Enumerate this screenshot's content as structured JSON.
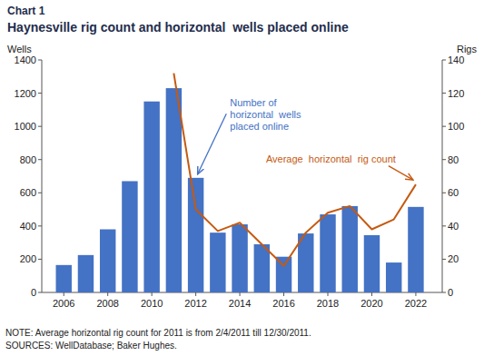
{
  "chart_data": {
    "type": "bar",
    "title": "Chart 1",
    "subtitle": "Haynesville rig count and horizontal  wells placed online",
    "x": [
      2006,
      2007,
      2008,
      2009,
      2010,
      2011,
      2012,
      2013,
      2014,
      2015,
      2016,
      2017,
      2018,
      2019,
      2020,
      2021,
      2022
    ],
    "series": [
      {
        "type": "bar",
        "color": "#4472C4",
        "values": [
          165,
          225,
          380,
          670,
          1150,
          1230,
          690,
          360,
          410,
          290,
          215,
          355,
          470,
          520,
          345,
          180,
          515
        ]
      },
      {
        "type": "line",
        "axis": "y2",
        "color": "#C55A11",
        "values": [
          null,
          null,
          null,
          null,
          null,
          132,
          50,
          37,
          42,
          29,
          16,
          36,
          48,
          52,
          38,
          44,
          65
        ]
      }
    ],
    "xlim": [
      2005,
      2023.2
    ],
    "xticks": [
      2006,
      2008,
      2010,
      2012,
      2014,
      2016,
      2018,
      2020,
      2022
    ],
    "ylabel": "Wells",
    "ylim": [
      0,
      1400
    ],
    "yticks": [
      0,
      200,
      400,
      600,
      800,
      1000,
      1200,
      1400
    ],
    "y2label": "Rigs",
    "y2lim": [
      0,
      140
    ],
    "y2ticks": [
      0,
      20,
      40,
      60,
      80,
      100,
      120,
      140
    ],
    "grid": false,
    "annotations": [
      "Number of\nhorizontal  wells\nplaced online",
      "Average  horizontal  rig count"
    ],
    "footnote": "NOTE: Average horizontal rig count for 2011 is from 2/4/2011 till 12/30/2011.",
    "source": "SOURCES: WellDatabase; Baker Hughes."
  }
}
